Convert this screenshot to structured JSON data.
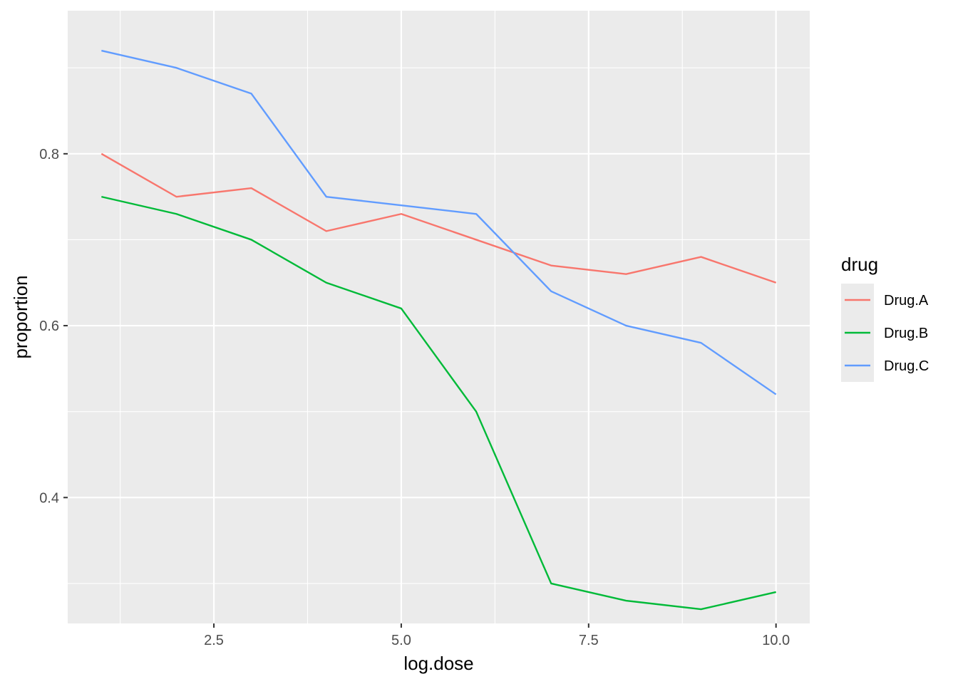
{
  "chart_data": {
    "type": "line",
    "xlabel": "log.dose",
    "ylabel": "proportion",
    "x": [
      1,
      2,
      3,
      4,
      5,
      6,
      7,
      8,
      9,
      10
    ],
    "xlim": [
      0.55,
      10.45
    ],
    "ylim": [
      0.2535,
      0.9665
    ],
    "xticks": [
      2.5,
      5.0,
      7.5,
      10.0
    ],
    "xtick_labels": [
      "2.5",
      "5.0",
      "7.5",
      "10.0"
    ],
    "xminor": [
      1.25,
      3.75,
      6.25,
      8.75
    ],
    "yticks": [
      0.4,
      0.6,
      0.8
    ],
    "ytick_labels": [
      "0.4",
      "0.6",
      "0.8"
    ],
    "yminor": [
      0.3,
      0.5,
      0.7,
      0.9
    ],
    "grid": true,
    "legend_position": "right",
    "legend_title": "drug",
    "series": [
      {
        "name": "Drug.A",
        "color": "#F8766D",
        "values": [
          0.8,
          0.75,
          0.76,
          0.71,
          0.73,
          0.7,
          0.67,
          0.66,
          0.68,
          0.65
        ]
      },
      {
        "name": "Drug.B",
        "color": "#00BA38",
        "values": [
          0.75,
          0.73,
          0.7,
          0.65,
          0.62,
          0.5,
          0.3,
          0.28,
          0.27,
          0.29
        ]
      },
      {
        "name": "Drug.C",
        "color": "#619CFF",
        "values": [
          0.92,
          0.9,
          0.87,
          0.75,
          0.74,
          0.73,
          0.64,
          0.6,
          0.58,
          0.52
        ]
      }
    ]
  },
  "colors": {
    "panel_background": "#EBEBEB",
    "grid_line": "#FFFFFF",
    "legend_key_background": "#EBEBEB"
  }
}
